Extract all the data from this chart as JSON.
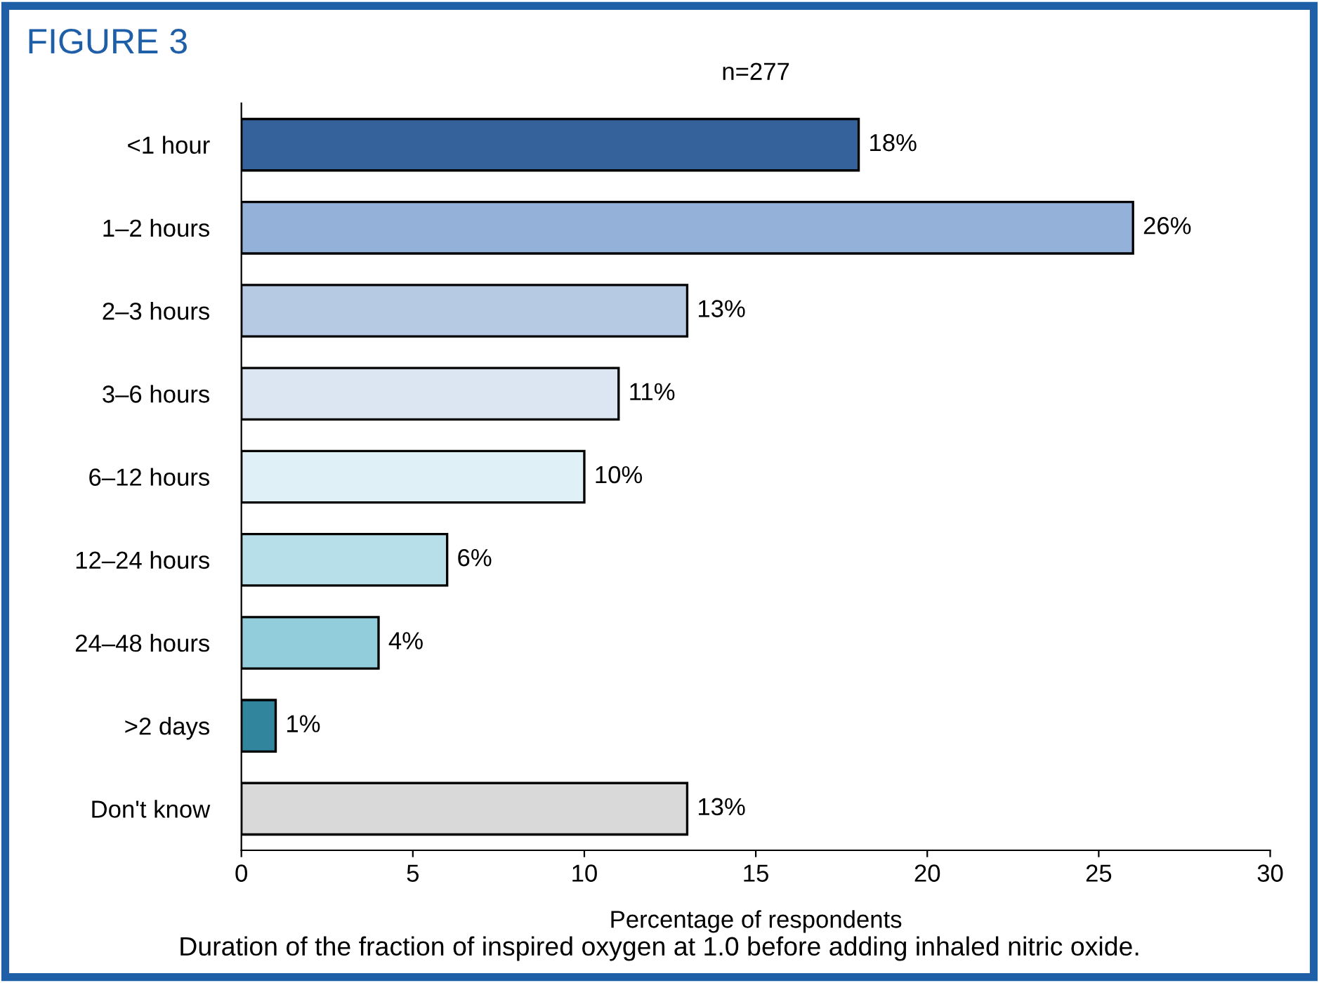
{
  "chart_data": {
    "type": "bar",
    "orientation": "horizontal",
    "title": "FIGURE 3",
    "subtitle": "n=277",
    "xlabel": "Percentage of respondents",
    "annotations": [
      "Duration of the fraction of inspired oxygen at 1.0 before adding inhaled nitric oxide."
    ],
    "categories": [
      "<1 hour",
      "1–2 hours",
      "2–3 hours",
      "3–6 hours",
      "6–12 hours",
      "12–24 hours",
      "24–48 hours",
      ">2 days",
      "Don't know"
    ],
    "values": [
      18,
      26,
      13,
      11,
      10,
      6,
      4,
      1,
      13
    ],
    "value_labels": [
      "18%",
      "26%",
      "13%",
      "11%",
      "10%",
      "6%",
      "4%",
      "1%",
      "13%"
    ],
    "colors": [
      "#35629a",
      "#94b1d9",
      "#b7cae4",
      "#dce6f2",
      "#dff0f6",
      "#b7dfea",
      "#92cddb",
      "#31859c",
      "#d9d9d9"
    ],
    "xlim": [
      0,
      30
    ],
    "xticks": [
      0,
      5,
      10,
      15,
      20,
      25,
      30
    ],
    "grid": false,
    "legend": false
  }
}
